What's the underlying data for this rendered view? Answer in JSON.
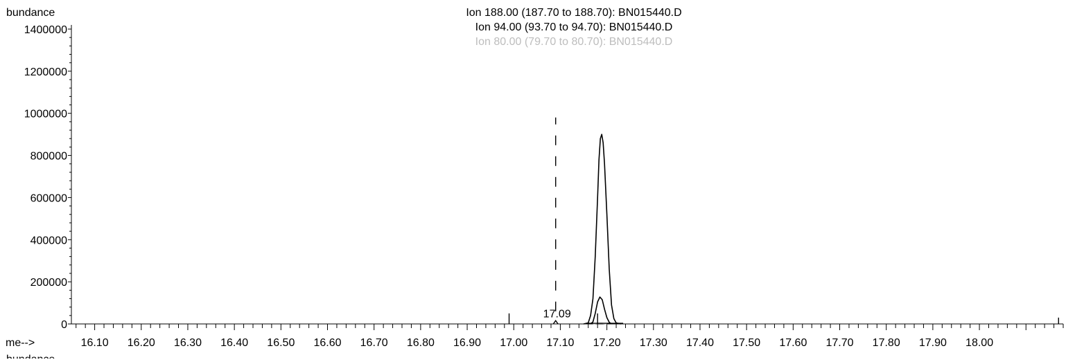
{
  "chart_data": {
    "type": "line",
    "ylabel": "bundance",
    "xlabel": "me-->",
    "bottom_label": "bundance",
    "title_lines": [
      "Ion 188.00 (187.70 to 188.70): BN015440.D",
      "Ion  94.00 (93.70 to 94.70): BN015440.D",
      "Ion  80.00 (79.70 to 80.70): BN015440.D"
    ],
    "xlim": [
      16.05,
      18.18
    ],
    "ylim": [
      0,
      1400000
    ],
    "x_ticks": [
      "16.10",
      "16.20",
      "16.30",
      "16.40",
      "16.50",
      "16.60",
      "16.70",
      "16.80",
      "16.90",
      "17.00",
      "17.10",
      "17.20",
      "17.30",
      "17.40",
      "17.50",
      "17.60",
      "17.70",
      "17.80",
      "17.90",
      "18.00"
    ],
    "y_ticks": [
      "0",
      "200000",
      "400000",
      "600000",
      "800000",
      "1000000",
      "1200000",
      "1400000"
    ],
    "series": [
      {
        "name": "Ion 188.00 (187.70 to 188.70): BN015440.D",
        "color": "#000000",
        "x": [
          17.15,
          17.16,
          17.165,
          17.17,
          17.175,
          17.18,
          17.183,
          17.186,
          17.189,
          17.192,
          17.195,
          17.2,
          17.205,
          17.21,
          17.215,
          17.22,
          17.23
        ],
        "y": [
          0,
          5000,
          40000,
          120000,
          320000,
          600000,
          780000,
          880000,
          900000,
          860000,
          760000,
          520000,
          260000,
          90000,
          25000,
          5000,
          0
        ]
      },
      {
        "name": "Ion  94.00 (93.70 to 94.70): BN015440.D",
        "color": "#000000",
        "x": [
          17.165,
          17.17,
          17.175,
          17.18,
          17.185,
          17.19,
          17.195,
          17.2,
          17.205,
          17.21
        ],
        "y": [
          0,
          10000,
          50000,
          105000,
          128000,
          115000,
          70000,
          30000,
          8000,
          0
        ]
      },
      {
        "name": "Ion  80.00 (79.70 to 80.70): BN015440.D",
        "color": "#aaaaaa",
        "x": [
          17.17,
          17.18,
          17.19,
          17.2
        ],
        "y": [
          0,
          3000,
          3000,
          0
        ]
      }
    ],
    "small_peak": {
      "x": [
        17.085,
        17.09,
        17.095
      ],
      "y": [
        0,
        6000,
        0
      ]
    },
    "annotations": [
      {
        "text": "17.09",
        "x": 17.09,
        "y": 18000
      }
    ],
    "markers": [
      {
        "style": "dashed",
        "x": 17.09,
        "y_from": 60000,
        "y_to": 980000
      },
      {
        "style": "solid",
        "x": 16.99,
        "y_from": 0,
        "y_to": 50000
      },
      {
        "style": "solid",
        "x": 17.18,
        "y_from": 0,
        "y_to": 50000
      },
      {
        "style": "solid",
        "x": 18.17,
        "y_from": 0,
        "y_to": 30000
      }
    ],
    "grid": false
  }
}
